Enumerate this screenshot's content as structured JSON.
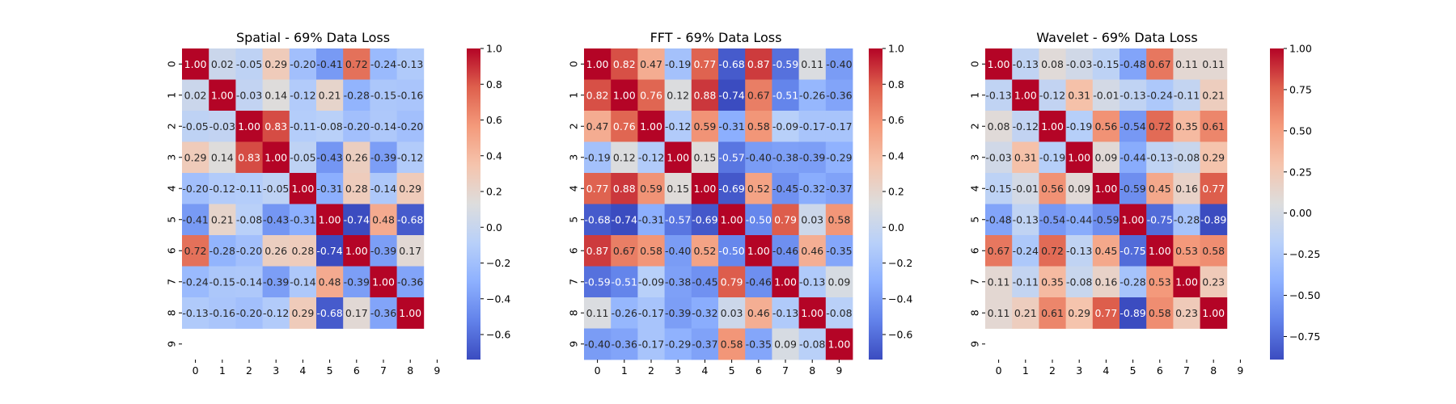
{
  "chart_data": [
    {
      "type": "heatmap",
      "title": "Spatial - 69% Data Loss",
      "x_categories": [
        "0",
        "1",
        "2",
        "3",
        "4",
        "5",
        "6",
        "7",
        "8",
        "9"
      ],
      "y_categories": [
        "0",
        "1",
        "2",
        "3",
        "4",
        "5",
        "6",
        "7",
        "8",
        "9"
      ],
      "values": [
        [
          1.0,
          0.02,
          -0.05,
          0.29,
          -0.2,
          -0.41,
          0.72,
          -0.24,
          -0.13,
          null
        ],
        [
          0.02,
          1.0,
          -0.03,
          0.14,
          -0.12,
          0.21,
          -0.28,
          -0.15,
          -0.16,
          null
        ],
        [
          -0.05,
          -0.03,
          1.0,
          0.83,
          -0.11,
          -0.08,
          -0.2,
          -0.14,
          -0.2,
          null
        ],
        [
          0.29,
          0.14,
          0.83,
          1.0,
          -0.05,
          -0.43,
          0.26,
          -0.39,
          -0.12,
          null
        ],
        [
          -0.2,
          -0.12,
          -0.11,
          -0.05,
          1.0,
          -0.31,
          0.28,
          -0.14,
          0.29,
          null
        ],
        [
          -0.41,
          0.21,
          -0.08,
          -0.43,
          -0.31,
          1.0,
          -0.74,
          0.48,
          -0.68,
          null
        ],
        [
          0.72,
          -0.28,
          -0.2,
          0.26,
          0.28,
          -0.74,
          1.0,
          -0.39,
          0.17,
          null
        ],
        [
          -0.24,
          -0.15,
          -0.14,
          -0.39,
          -0.14,
          0.48,
          -0.39,
          1.0,
          -0.36,
          null
        ],
        [
          -0.13,
          -0.16,
          -0.2,
          -0.12,
          0.29,
          -0.68,
          0.17,
          -0.36,
          1.0,
          null
        ],
        [
          null,
          null,
          null,
          null,
          null,
          null,
          null,
          null,
          null,
          null
        ]
      ],
      "value_format": "0.00",
      "colormap": "coolwarm",
      "colorbar": {
        "vmin": -0.74,
        "vmax": 1.0,
        "ticks": [
          -0.6,
          -0.4,
          -0.2,
          0.0,
          0.2,
          0.4,
          0.6,
          0.8,
          1.0
        ],
        "tick_labels": [
          "−0.6",
          "−0.4",
          "−0.2",
          "0.0",
          "0.2",
          "0.4",
          "0.6",
          "0.8",
          "1.0"
        ]
      }
    },
    {
      "type": "heatmap",
      "title": "FFT - 69% Data Loss",
      "x_categories": [
        "0",
        "1",
        "2",
        "3",
        "4",
        "5",
        "6",
        "7",
        "8",
        "9"
      ],
      "y_categories": [
        "0",
        "1",
        "2",
        "3",
        "4",
        "5",
        "6",
        "7",
        "8",
        "9"
      ],
      "values": [
        [
          1.0,
          0.82,
          0.47,
          -0.19,
          0.77,
          -0.68,
          0.87,
          -0.59,
          0.11,
          -0.4
        ],
        [
          0.82,
          1.0,
          0.76,
          0.12,
          0.88,
          -0.74,
          0.67,
          -0.51,
          -0.26,
          -0.36
        ],
        [
          0.47,
          0.76,
          1.0,
          -0.12,
          0.59,
          -0.31,
          0.58,
          -0.09,
          -0.17,
          -0.17
        ],
        [
          -0.19,
          0.12,
          -0.12,
          1.0,
          0.15,
          -0.57,
          -0.4,
          -0.38,
          -0.39,
          -0.29
        ],
        [
          0.77,
          0.88,
          0.59,
          0.15,
          1.0,
          -0.69,
          0.52,
          -0.45,
          -0.32,
          -0.37
        ],
        [
          -0.68,
          -0.74,
          -0.31,
          -0.57,
          -0.69,
          1.0,
          -0.5,
          0.79,
          0.03,
          0.58
        ],
        [
          0.87,
          0.67,
          0.58,
          -0.4,
          0.52,
          -0.5,
          1.0,
          -0.46,
          0.46,
          -0.35
        ],
        [
          -0.59,
          -0.51,
          -0.09,
          -0.38,
          -0.45,
          0.79,
          -0.46,
          1.0,
          -0.13,
          0.09
        ],
        [
          0.11,
          -0.26,
          -0.17,
          -0.39,
          -0.32,
          0.03,
          0.46,
          -0.13,
          1.0,
          -0.08
        ],
        [
          -0.4,
          -0.36,
          -0.17,
          -0.29,
          -0.37,
          0.58,
          -0.35,
          0.09,
          -0.08,
          1.0
        ]
      ],
      "value_format": "0.00",
      "colormap": "coolwarm",
      "colorbar": {
        "vmin": -0.74,
        "vmax": 1.0,
        "ticks": [
          -0.6,
          -0.4,
          -0.2,
          0.0,
          0.2,
          0.4,
          0.6,
          0.8,
          1.0
        ],
        "tick_labels": [
          "−0.6",
          "−0.4",
          "−0.2",
          "0.0",
          "0.2",
          "0.4",
          "0.6",
          "0.8",
          "1.0"
        ]
      }
    },
    {
      "type": "heatmap",
      "title": "Wavelet - 69% Data Loss",
      "x_categories": [
        "0",
        "1",
        "2",
        "3",
        "4",
        "5",
        "6",
        "7",
        "8",
        "9"
      ],
      "y_categories": [
        "0",
        "1",
        "2",
        "3",
        "4",
        "5",
        "6",
        "7",
        "8",
        "9"
      ],
      "values": [
        [
          1.0,
          -0.13,
          0.08,
          -0.03,
          -0.15,
          -0.48,
          0.67,
          0.11,
          0.11,
          null
        ],
        [
          -0.13,
          1.0,
          -0.12,
          0.31,
          -0.01,
          -0.13,
          -0.24,
          -0.11,
          0.21,
          null
        ],
        [
          0.08,
          -0.12,
          1.0,
          -0.19,
          0.56,
          -0.54,
          0.72,
          0.35,
          0.61,
          null
        ],
        [
          -0.03,
          0.31,
          -0.19,
          1.0,
          0.09,
          -0.44,
          -0.13,
          -0.08,
          0.29,
          null
        ],
        [
          -0.15,
          -0.01,
          0.56,
          0.09,
          1.0,
          -0.59,
          0.45,
          0.16,
          0.77,
          null
        ],
        [
          -0.48,
          -0.13,
          -0.54,
          -0.44,
          -0.59,
          1.0,
          -0.75,
          -0.28,
          -0.89,
          null
        ],
        [
          0.67,
          -0.24,
          0.72,
          -0.13,
          0.45,
          -0.75,
          1.0,
          0.53,
          0.58,
          null
        ],
        [
          0.11,
          -0.11,
          0.35,
          -0.08,
          0.16,
          -0.28,
          0.53,
          1.0,
          0.23,
          null
        ],
        [
          0.11,
          0.21,
          0.61,
          0.29,
          0.77,
          -0.89,
          0.58,
          0.23,
          1.0,
          null
        ],
        [
          null,
          null,
          null,
          null,
          null,
          null,
          null,
          null,
          null,
          null
        ]
      ],
      "value_format": "0.00",
      "colormap": "coolwarm",
      "colorbar": {
        "vmin": -0.89,
        "vmax": 1.0,
        "ticks": [
          -0.75,
          -0.5,
          -0.25,
          0.0,
          0.25,
          0.5,
          0.75,
          1.0
        ],
        "tick_labels": [
          "−0.75",
          "−0.50",
          "−0.25",
          "0.00",
          "0.25",
          "0.50",
          "0.75",
          "1.00"
        ]
      }
    }
  ]
}
